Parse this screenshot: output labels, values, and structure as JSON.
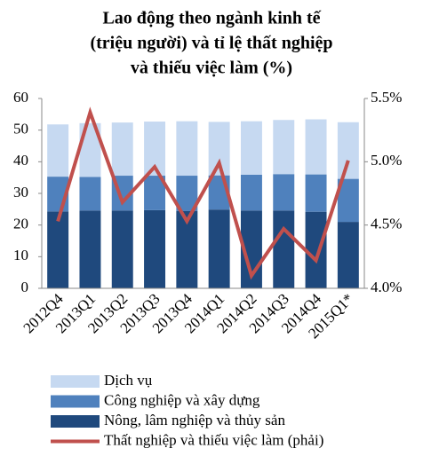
{
  "chart_data": {
    "type": "bar",
    "title": [
      "Lao động theo ngành kinh tế",
      "(triệu người) và tỉ lệ thất nghiệp",
      "và thiếu việc làm (%)"
    ],
    "categories": [
      "2012Q4",
      "2013Q1",
      "2013Q2",
      "2013Q3",
      "2013Q4",
      "2014Q1",
      "2014Q2",
      "2014Q3",
      "2014Q4",
      "2015Q1*"
    ],
    "stacked": true,
    "series": [
      {
        "name": "Dịch vụ",
        "color": "#c6d9f1",
        "values": [
          16.5,
          17.0,
          16.8,
          17.1,
          17.2,
          16.9,
          16.9,
          17.1,
          17.4,
          17.9
        ]
      },
      {
        "name": "Công nghiệp và xây dựng",
        "color": "#4f81bd",
        "values": [
          11.0,
          10.6,
          11.0,
          10.9,
          11.2,
          10.8,
          11.3,
          11.5,
          11.8,
          13.6
        ]
      },
      {
        "name": "Nông, lâm nghiệp và thủy sản",
        "color": "#1f497d",
        "values": [
          24.3,
          24.6,
          24.6,
          24.7,
          24.4,
          24.9,
          24.6,
          24.6,
          24.2,
          21.0
        ]
      },
      {
        "name": "Thất nghiệp và thiếu việc làm (phải)",
        "color": "#c0504d",
        "type": "line",
        "axis": "y2",
        "values": [
          4.53,
          5.39,
          4.68,
          4.96,
          4.53,
          4.99,
          4.1,
          4.47,
          4.22,
          5.01
        ]
      }
    ],
    "ylim": [
      0,
      60
    ],
    "yticks": [
      0,
      10,
      20,
      30,
      40,
      50,
      60
    ],
    "y2lim": [
      4.0,
      5.5
    ],
    "y2ticks": [
      {
        "value": 4.0,
        "label": "4.0%"
      },
      {
        "value": 4.5,
        "label": "4.5%"
      },
      {
        "value": 5.0,
        "label": "5.0%"
      },
      {
        "value": 5.5,
        "label": "5.5%"
      }
    ],
    "legend": "bottom",
    "grid": false
  }
}
